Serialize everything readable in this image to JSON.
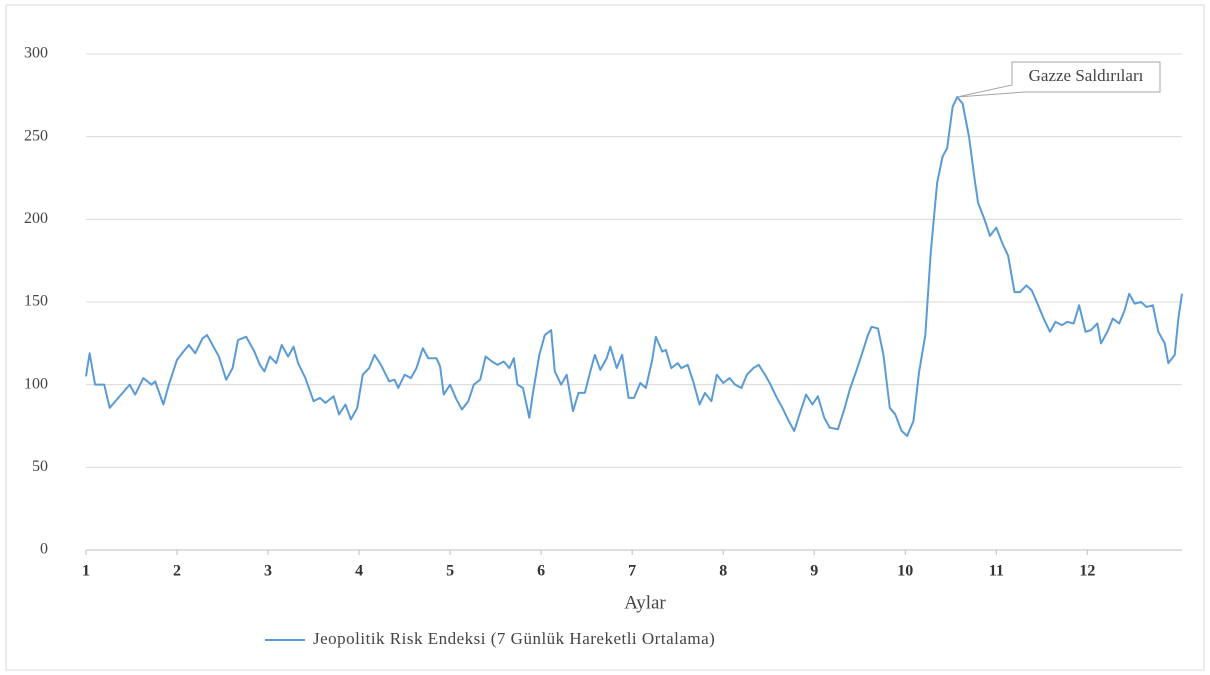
{
  "chart_data": {
    "type": "line",
    "x_label": "Aylar",
    "annotation": "Gazze Saldırıları",
    "xlim": [
      1,
      13.04
    ],
    "xticks": [
      1,
      2,
      3,
      4,
      5,
      6,
      7,
      8,
      9,
      10,
      11,
      12
    ],
    "ylim": [
      0,
      300
    ],
    "yticks": [
      0,
      50,
      100,
      150,
      200,
      250,
      300
    ],
    "grid": true,
    "x": [
      1.0,
      1.04,
      1.1,
      1.2,
      1.26,
      1.37,
      1.48,
      1.54,
      1.63,
      1.72,
      1.76,
      1.85,
      1.91,
      2.0,
      2.07,
      2.13,
      2.2,
      2.28,
      2.33,
      2.39,
      2.46,
      2.54,
      2.61,
      2.67,
      2.76,
      2.85,
      2.91,
      2.96,
      3.02,
      3.09,
      3.15,
      3.22,
      3.28,
      3.33,
      3.41,
      3.5,
      3.57,
      3.63,
      3.72,
      3.78,
      3.85,
      3.91,
      3.98,
      4.04,
      4.11,
      4.17,
      4.24,
      4.33,
      4.39,
      4.43,
      4.5,
      4.57,
      4.63,
      4.7,
      4.76,
      4.85,
      4.89,
      4.93,
      5.0,
      5.07,
      5.13,
      5.2,
      5.26,
      5.33,
      5.39,
      5.46,
      5.52,
      5.59,
      5.65,
      5.7,
      5.74,
      5.8,
      5.87,
      5.91,
      5.98,
      6.04,
      6.11,
      6.15,
      6.22,
      6.28,
      6.35,
      6.41,
      6.48,
      6.54,
      6.59,
      6.65,
      6.72,
      6.76,
      6.83,
      6.89,
      6.96,
      7.02,
      7.09,
      7.15,
      7.22,
      7.26,
      7.33,
      7.37,
      7.43,
      7.5,
      7.54,
      7.61,
      7.67,
      7.74,
      7.8,
      7.87,
      7.93,
      8.0,
      8.07,
      8.13,
      8.2,
      8.26,
      8.33,
      8.39,
      8.46,
      8.52,
      8.59,
      8.65,
      8.72,
      8.78,
      8.85,
      8.91,
      8.98,
      9.04,
      9.11,
      9.17,
      9.26,
      9.33,
      9.39,
      9.46,
      9.52,
      9.59,
      9.63,
      9.7,
      9.76,
      9.83,
      9.89,
      9.96,
      10.02,
      10.09,
      10.15,
      10.22,
      10.28,
      10.35,
      10.41,
      10.46,
      10.52,
      10.57,
      10.63,
      10.7,
      10.76,
      10.8,
      10.87,
      10.93,
      11.0,
      11.07,
      11.13,
      11.2,
      11.26,
      11.33,
      11.39,
      11.46,
      11.52,
      11.59,
      11.65,
      11.72,
      11.78,
      11.85,
      11.91,
      11.98,
      12.04,
      12.11,
      12.15,
      12.22,
      12.28,
      12.35,
      12.41,
      12.46,
      12.52,
      12.59,
      12.65,
      12.72,
      12.78,
      12.85,
      12.89,
      12.96,
      13.0,
      13.04
    ],
    "series": [
      {
        "name": "Jeopolitik Risk Endeksi (7 Günlük Hareketli Ortalama)",
        "color": "#5b9bd5",
        "values": [
          105,
          119,
          100,
          100,
          86,
          93,
          100,
          94,
          104,
          100,
          102,
          88,
          100,
          115,
          120,
          124,
          119,
          128,
          130,
          124,
          117,
          103,
          110,
          127,
          129,
          120,
          112,
          108,
          117,
          113,
          124,
          117,
          123,
          113,
          104,
          90,
          92,
          89,
          93,
          82,
          88,
          79,
          86,
          106,
          110,
          118,
          112,
          102,
          103,
          98,
          106,
          104,
          110,
          122,
          116,
          116,
          111,
          94,
          100,
          91,
          85,
          90,
          100,
          103,
          117,
          114,
          112,
          114,
          110,
          116,
          100,
          98,
          80,
          95,
          118,
          130,
          133,
          108,
          100,
          106,
          84,
          95,
          95,
          108,
          118,
          109,
          116,
          123,
          110,
          118,
          92,
          92,
          101,
          98,
          115,
          129,
          120,
          121,
          110,
          113,
          110,
          112,
          102,
          88,
          95,
          90,
          106,
          101,
          104,
          100,
          98,
          106,
          110,
          112,
          106,
          100,
          92,
          86,
          78,
          72,
          84,
          94,
          88,
          93,
          80,
          74,
          73,
          85,
          97,
          108,
          118,
          130,
          135,
          134,
          118,
          86,
          82,
          72,
          69,
          78,
          107,
          130,
          180,
          222,
          238,
          243,
          268,
          274,
          270,
          250,
          225,
          210,
          200,
          190,
          195,
          185,
          178,
          156,
          156,
          160,
          157,
          148,
          140,
          132,
          138,
          136,
          138,
          137,
          148,
          132,
          133,
          137,
          125,
          132,
          140,
          137,
          145,
          155,
          149,
          150,
          147,
          148,
          132,
          125,
          113,
          118,
          140,
          155
        ]
      }
    ],
    "legend": "bottom"
  }
}
